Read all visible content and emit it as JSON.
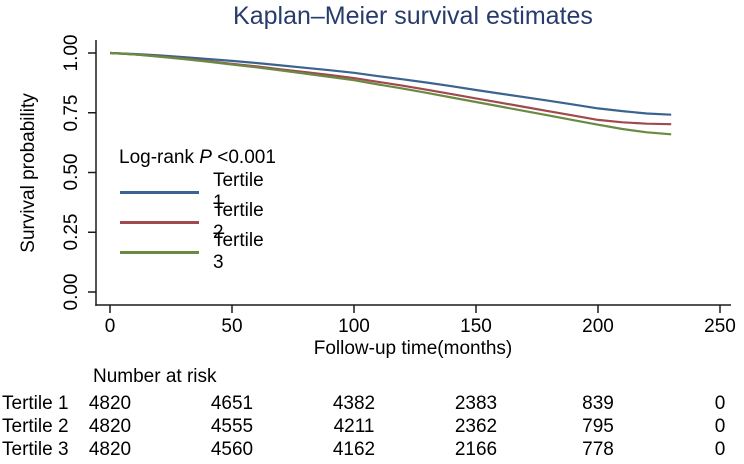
{
  "title": "Kaplan–Meier survival estimates",
  "chart_data": {
    "type": "line",
    "subtype": "kaplan-meier",
    "title": "Kaplan–Meier survival estimates",
    "xlabel": "Follow-up time(months)",
    "ylabel": "Survival probability",
    "xlim": [
      0,
      250
    ],
    "ylim": [
      0.0,
      1.0
    ],
    "grid": false,
    "legend_position": "inside-left",
    "xticks": [
      "0",
      "50",
      "100",
      "150",
      "200",
      "250"
    ],
    "yticks": [
      "0.00",
      "0.25",
      "0.50",
      "0.75",
      "1.00"
    ],
    "x": [
      0,
      10,
      20,
      30,
      40,
      50,
      60,
      70,
      80,
      90,
      100,
      110,
      120,
      130,
      140,
      150,
      160,
      170,
      180,
      190,
      200,
      210,
      220,
      230
    ],
    "series": [
      {
        "name": "Tertile 1",
        "color": "#3a648f",
        "values": [
          1.0,
          0.996,
          0.99,
          0.983,
          0.975,
          0.967,
          0.958,
          0.948,
          0.938,
          0.928,
          0.917,
          0.903,
          0.89,
          0.876,
          0.861,
          0.845,
          0.83,
          0.815,
          0.8,
          0.784,
          0.768,
          0.757,
          0.747,
          0.742
        ]
      },
      {
        "name": "Tertile 2",
        "color": "#9e4a4e",
        "values": [
          1.0,
          0.994,
          0.986,
          0.977,
          0.966,
          0.955,
          0.944,
          0.932,
          0.92,
          0.908,
          0.895,
          0.879,
          0.863,
          0.846,
          0.828,
          0.81,
          0.792,
          0.774,
          0.756,
          0.738,
          0.72,
          0.71,
          0.704,
          0.702
        ]
      },
      {
        "name": "Tertile 3",
        "color": "#6b8a41",
        "values": [
          1.0,
          0.994,
          0.985,
          0.975,
          0.964,
          0.952,
          0.94,
          0.927,
          0.914,
          0.9,
          0.886,
          0.868,
          0.851,
          0.833,
          0.814,
          0.795,
          0.776,
          0.757,
          0.738,
          0.719,
          0.7,
          0.682,
          0.668,
          0.66
        ]
      }
    ],
    "annotation": "Log-rank P <0.001"
  },
  "legend": {
    "logrank_prefix": "Log-rank ",
    "logrank_p": "P",
    "logrank_value": " <0.001",
    "items": [
      {
        "label": "Tertile 1",
        "color": "#3a648f"
      },
      {
        "label": "Tertile 2",
        "color": "#9e4a4e"
      },
      {
        "label": "Tertile 3",
        "color": "#6b8a41"
      }
    ]
  },
  "axes": {
    "x_title": "Follow-up time(months)",
    "y_title": "Survival probability"
  },
  "risk_table": {
    "header": "Number at risk",
    "time_points": [
      0,
      50,
      100,
      150,
      200,
      250
    ],
    "rows": [
      {
        "label": "Tertile 1",
        "values": [
          "4820",
          "4651",
          "4382",
          "2383",
          "839",
          "0"
        ]
      },
      {
        "label": "Tertile 2",
        "values": [
          "4820",
          "4555",
          "4211",
          "2362",
          "795",
          "0"
        ]
      },
      {
        "label": "Tertile 3",
        "values": [
          "4820",
          "4560",
          "4162",
          "2166",
          "778",
          "0"
        ]
      }
    ]
  },
  "colors": {
    "title": "#273c6d",
    "axis": "#000000",
    "background": "#ffffff"
  }
}
